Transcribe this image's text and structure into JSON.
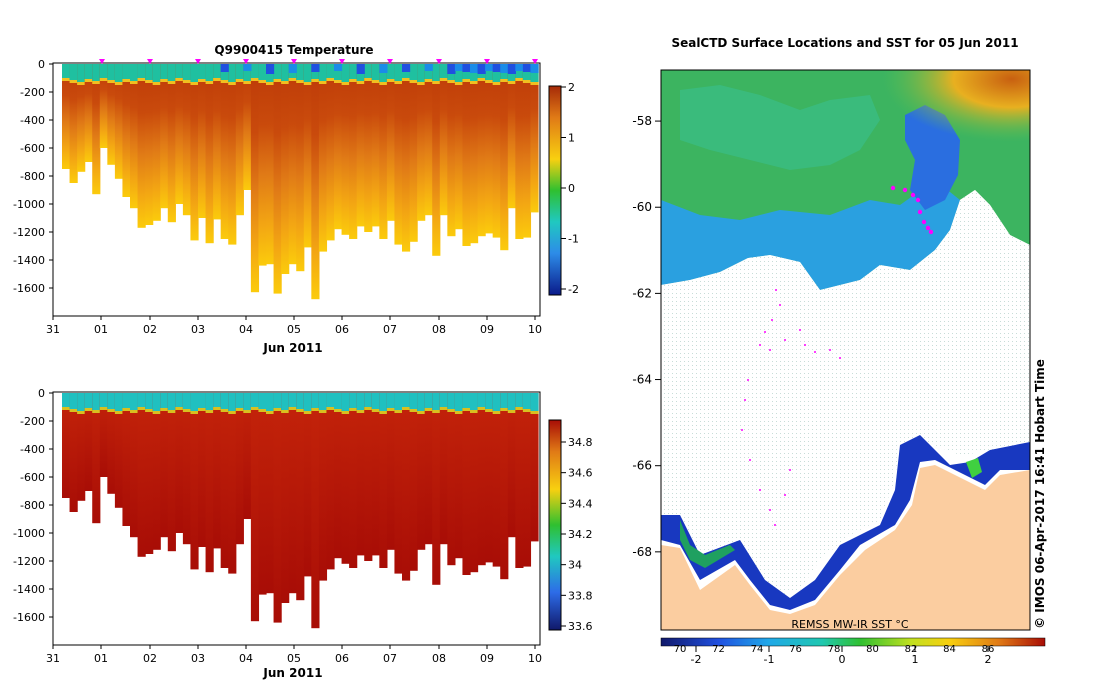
{
  "colors": {
    "temp_bottom": "#a82a08",
    "temp_deep": "#f7ad10",
    "temp_mid": "#e8831a",
    "surface": "#1fc0a0",
    "sal_body": "#b01508",
    "land": "#fbcda0",
    "ice": "#ffffff",
    "track": "#ff00ff"
  },
  "chart_data": [
    {
      "id": "temperature",
      "type": "heatmap",
      "title": "Q9900415  Temperature",
      "xlabel": "Jun 2011",
      "ylabel": "",
      "x_ticks": [
        "31",
        "01",
        "02",
        "03",
        "04",
        "05",
        "06",
        "07",
        "08",
        "09",
        "10"
      ],
      "y_ticks": [
        0,
        -200,
        -400,
        -600,
        -800,
        -1000,
        -1200,
        -1400,
        -1600
      ],
      "ylim": [
        -1800,
        0
      ],
      "colorbar": {
        "ticks": [
          "2",
          "1",
          "0",
          "-1",
          "-2"
        ],
        "range": [
          -2,
          2
        ]
      },
      "profile_max_depth_m": [
        750,
        850,
        770,
        700,
        930,
        600,
        720,
        820,
        950,
        1030,
        1170,
        1150,
        1120,
        1030,
        1130,
        1000,
        1080,
        1260,
        1100,
        1280,
        1110,
        1250,
        1290,
        1080,
        900,
        1630,
        1440,
        1430,
        1640,
        1500,
        1430,
        1480,
        1310,
        1680,
        1340,
        1260,
        1180,
        1220,
        1250,
        1160,
        1200,
        1160,
        1250,
        1120,
        1290,
        1340,
        1270,
        1120,
        1080,
        1370,
        1080,
        1230,
        1180,
        1300,
        1280,
        1230,
        1210,
        1240,
        1330,
        1030,
        1250,
        1240,
        1060
      ]
    },
    {
      "id": "salinity",
      "type": "heatmap",
      "title": "",
      "xlabel": "Jun 2011",
      "ylabel": "",
      "x_ticks": [
        "31",
        "01",
        "02",
        "03",
        "04",
        "05",
        "06",
        "07",
        "08",
        "09",
        "10"
      ],
      "y_ticks": [
        0,
        -200,
        -400,
        -600,
        -800,
        -1000,
        -1200,
        -1400,
        -1600
      ],
      "ylim": [
        -1800,
        0
      ],
      "colorbar": {
        "ticks": [
          "34.8",
          "34.6",
          "34.4",
          "34.2",
          "34",
          "33.8",
          "33.6"
        ],
        "range": [
          33.55,
          34.95
        ]
      }
    },
    {
      "id": "sst_map",
      "type": "heatmap",
      "title": "SealCTD Surface Locations and SST for 05 Jun 2011",
      "lat_ticks": [
        "-58",
        "-60",
        "-62",
        "-64",
        "-66",
        "-68"
      ],
      "lat_range": [
        -70,
        -57
      ],
      "colorbar_top_ticks": [
        "70",
        "72",
        "74",
        "76",
        "78",
        "80",
        "82",
        "84",
        "86"
      ],
      "colorbar_bottom_ticks": [
        "-2",
        "-1",
        "0",
        "1",
        "2"
      ],
      "caption": "REMSS MW-IR SST °C",
      "credit": "© IMOS 06-Apr-2017 16:41 Hobart Time"
    }
  ]
}
